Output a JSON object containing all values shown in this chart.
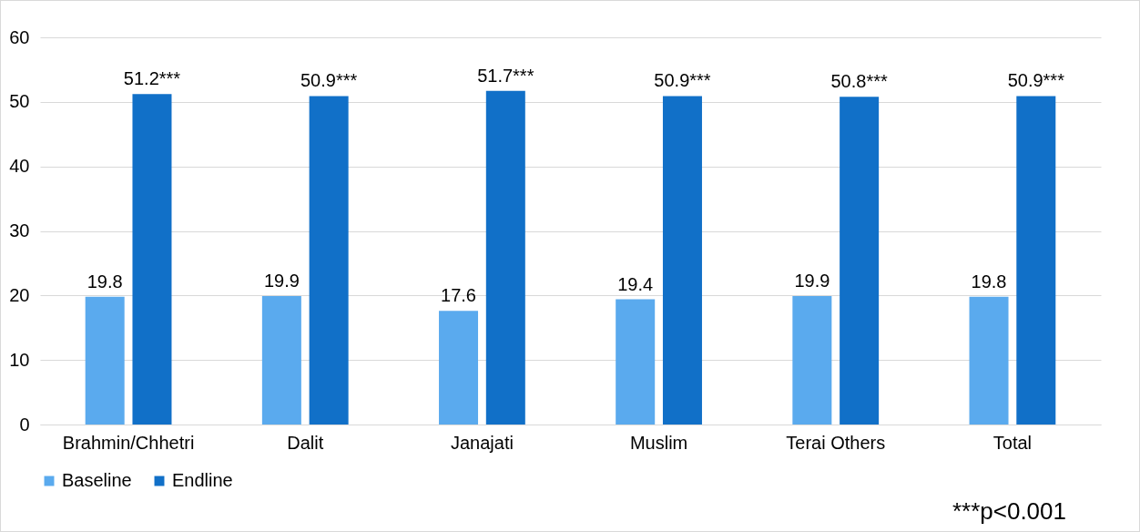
{
  "chart_data": {
    "type": "bar",
    "categories": [
      "Brahmin/Chhetri",
      "Dalit",
      "Janajati",
      "Muslim",
      "Terai Others",
      "Total"
    ],
    "series": [
      {
        "name": "Baseline",
        "color": "#5aaaee",
        "values": [
          19.8,
          19.9,
          17.6,
          19.4,
          19.9,
          19.8
        ],
        "value_labels": [
          "19.8",
          "19.9",
          "17.6",
          "19.4",
          "19.9",
          "19.8"
        ]
      },
      {
        "name": "Endline",
        "color": "#1170c8",
        "values": [
          51.2,
          50.9,
          51.7,
          50.9,
          50.8,
          50.9
        ],
        "value_labels": [
          "51.2***",
          "50.9***",
          "51.7***",
          "50.9***",
          "50.8***",
          "50.9***"
        ]
      }
    ],
    "ylim": [
      0,
      60
    ],
    "yticks": [
      0,
      10,
      20,
      30,
      40,
      50,
      60
    ],
    "grid": "y",
    "legend": "bottom",
    "annotations": [
      "***p<0.001"
    ]
  }
}
